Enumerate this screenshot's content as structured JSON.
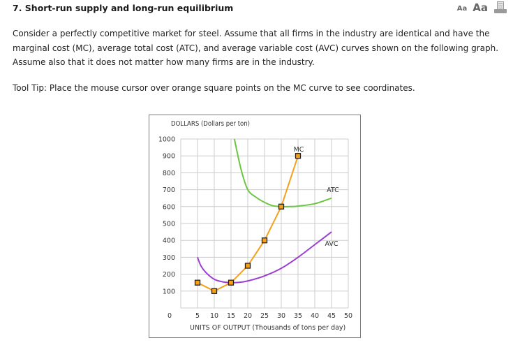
{
  "header": {
    "title": "7.  Short-run supply and long-run equilibrium",
    "font_small_label": "Aa",
    "font_large_label": "Aa",
    "print_icon": "printer-icon"
  },
  "question": {
    "paragraph": "Consider a perfectly competitive market for steel. Assume that all firms in the industry are identical and have the marginal cost (MC), average total cost (ATC), and average variable cost (AVC) curves shown on the following graph. Assume also that it does not matter how many firms are in the industry.",
    "tooltip_note": "Tool Tip: Place the mouse cursor over orange square points on the MC curve to see coordinates."
  },
  "colors": {
    "mc": "#f5a01a",
    "atc": "#6cc644",
    "avc": "#9b3fd0",
    "grid": "#cccccc",
    "frame": "#7a7a7a"
  },
  "chart_data": {
    "type": "line",
    "title": "",
    "xlabel": "UNITS OF OUTPUT (Thousands of tons per day)",
    "ylabel": "DOLLARS (Dollars per ton)",
    "xlim": [
      0,
      50
    ],
    "ylim": [
      0,
      1000
    ],
    "x_ticks": [
      0,
      5,
      10,
      15,
      20,
      25,
      30,
      35,
      40,
      45,
      50
    ],
    "y_ticks": [
      100,
      200,
      300,
      400,
      500,
      600,
      700,
      800,
      900,
      1000
    ],
    "grid": true,
    "legend": "inline labels",
    "series": [
      {
        "name": "MC",
        "marker": "square",
        "x": [
          5,
          10,
          15,
          20,
          25,
          30,
          35
        ],
        "y": [
          150,
          100,
          150,
          250,
          400,
          600,
          900
        ]
      },
      {
        "name": "ATC",
        "x": [
          16,
          18,
          20,
          22.5,
          25,
          27.5,
          30,
          32.5,
          35,
          40,
          45
        ],
        "y": [
          1000,
          820,
          700,
          655,
          625,
          605,
          600,
          600,
          603,
          617,
          650
        ]
      },
      {
        "name": "AVC",
        "x": [
          5,
          6,
          7.5,
          10,
          12.5,
          15,
          17.5,
          20,
          25,
          30,
          35,
          40,
          45
        ],
        "y": [
          300,
          250,
          210,
          170,
          155,
          150,
          152,
          160,
          190,
          235,
          300,
          375,
          450
        ]
      }
    ]
  }
}
